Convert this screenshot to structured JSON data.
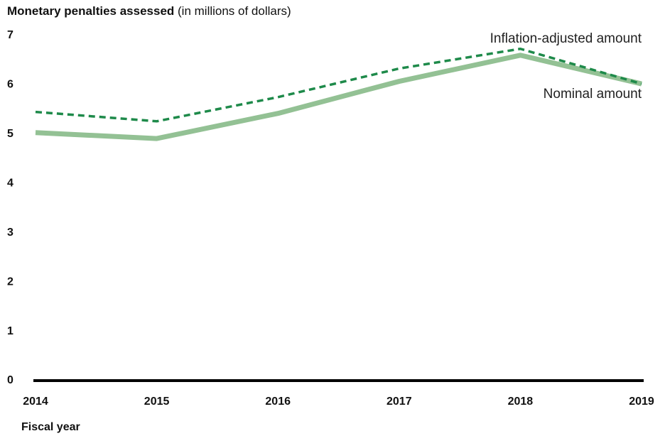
{
  "chart_data": {
    "type": "line",
    "title": "Monetary penalties assessed",
    "title_note": "(in millions of dollars)",
    "x_label": "Fiscal year",
    "categories": [
      "2014",
      "2015",
      "2016",
      "2017",
      "2018",
      "2019"
    ],
    "series": [
      {
        "name": "Nominal amount",
        "color": "#93c194",
        "values": [
          5.03,
          4.91,
          5.42,
          6.07,
          6.6,
          6.02
        ]
      },
      {
        "name": "Inflation-adjusted amount",
        "color": "#1e8a4a",
        "values": [
          5.45,
          5.26,
          5.75,
          6.33,
          6.73,
          6.02
        ]
      }
    ],
    "ylim": [
      0,
      7
    ],
    "yticks": [
      0,
      1,
      2,
      3,
      4,
      5,
      6,
      7
    ],
    "grid": false
  }
}
